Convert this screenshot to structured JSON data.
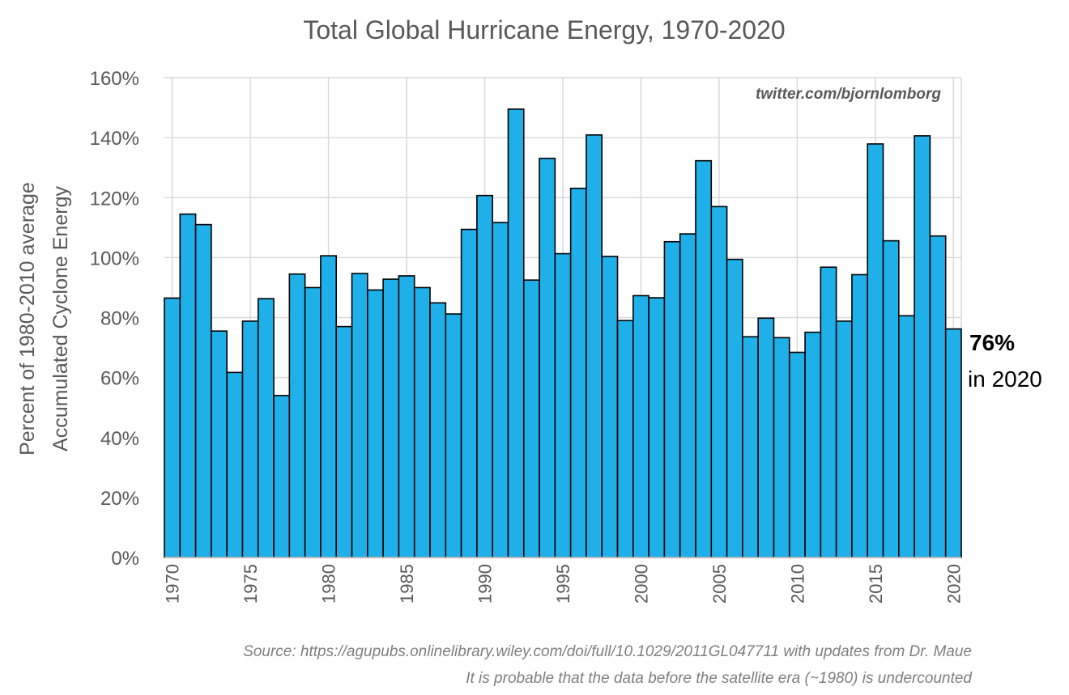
{
  "chart_data": {
    "type": "bar",
    "title": "Total Global Hurricane Energy, 1970-2020",
    "ylabel_lines": [
      "Percent of 1980-2010 average",
      "Accumulated Cyclone Energy"
    ],
    "xlabel": "",
    "ylim": [
      0,
      160
    ],
    "yticks": [
      0,
      20,
      40,
      60,
      80,
      100,
      120,
      140,
      160
    ],
    "ytick_labels": [
      "0%",
      "20%",
      "40%",
      "60%",
      "80%",
      "100%",
      "120%",
      "140%",
      "160%"
    ],
    "xtick_labels": [
      "1970",
      "1975",
      "1980",
      "1985",
      "1990",
      "1995",
      "2000",
      "2005",
      "2010",
      "2015",
      "2020"
    ],
    "grid": true,
    "bar_color": "#1fb0ea",
    "bar_edge_color": "#000000",
    "categories": [
      1970,
      1971,
      1972,
      1973,
      1974,
      1975,
      1976,
      1977,
      1978,
      1979,
      1980,
      1981,
      1982,
      1983,
      1984,
      1985,
      1986,
      1987,
      1988,
      1989,
      1990,
      1991,
      1992,
      1993,
      1994,
      1995,
      1996,
      1997,
      1998,
      1999,
      2000,
      2001,
      2002,
      2003,
      2004,
      2005,
      2006,
      2007,
      2008,
      2009,
      2010,
      2011,
      2012,
      2013,
      2014,
      2015,
      2016,
      2017,
      2018,
      2019,
      2020
    ],
    "values": [
      86.5,
      114.5,
      111,
      75.5,
      61.7,
      78.8,
      86.3,
      54,
      94.5,
      90,
      100.6,
      77,
      94.7,
      89.2,
      92.8,
      93.9,
      90,
      84.9,
      81.2,
      109.4,
      120.7,
      111.7,
      149.5,
      92.5,
      133.1,
      101.3,
      123.1,
      140.9,
      100.4,
      79,
      87.3,
      86.6,
      105.3,
      107.9,
      132.3,
      117,
      99.4,
      73.6,
      79.8,
      73.3,
      68.4,
      75.1,
      96.8,
      78.8,
      94.3,
      137.9,
      105.6,
      80.6,
      140.6,
      107.2,
      76.2
    ],
    "credit": "twitter.com/bjornlomborg",
    "annotation": {
      "value": "76%",
      "text": "in 2020"
    },
    "source_lines": [
      "Source: https://agupubs.onlinelibrary.wiley.com/doi/full/10.1029/2011GL047711 with updates from Dr. Maue",
      "It is probable that the data before the satellite era (~1980) is undercounted"
    ]
  }
}
